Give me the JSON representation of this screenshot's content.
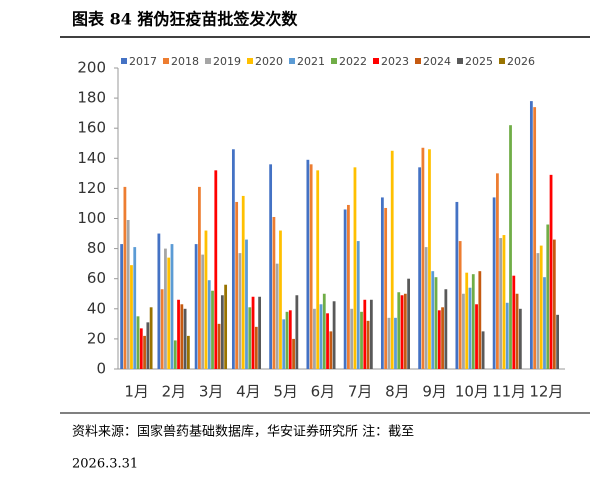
{
  "header": {
    "title": "图表 84 猪伪狂疫苗批签发次数"
  },
  "chart_data": {
    "type": "bar",
    "categories": [
      "1月",
      "2月",
      "3月",
      "4月",
      "5月",
      "6月",
      "7月",
      "8月",
      "9月",
      "10月",
      "11月",
      "12月"
    ],
    "series": [
      {
        "name": "2017",
        "color": "#4472c4",
        "values": [
          83,
          90,
          83,
          146,
          136,
          139,
          106,
          114,
          134,
          111,
          114,
          178
        ]
      },
      {
        "name": "2018",
        "color": "#ed7d31",
        "values": [
          121,
          53,
          121,
          111,
          101,
          136,
          109,
          107,
          147,
          85,
          130,
          174
        ]
      },
      {
        "name": "2019",
        "color": "#a5a5a5",
        "values": [
          99,
          80,
          76,
          77,
          70,
          40,
          40,
          34,
          81,
          50,
          87,
          77
        ]
      },
      {
        "name": "2020",
        "color": "#ffc000",
        "values": [
          69,
          74,
          92,
          115,
          92,
          132,
          134,
          145,
          146,
          64,
          89,
          82
        ]
      },
      {
        "name": "2021",
        "color": "#5b9bd5",
        "values": [
          81,
          83,
          59,
          86,
          33,
          43,
          85,
          34,
          65,
          54,
          44,
          61
        ]
      },
      {
        "name": "2022",
        "color": "#70ad47",
        "values": [
          35,
          19,
          52,
          41,
          38,
          50,
          38,
          51,
          61,
          63,
          162,
          96
        ]
      },
      {
        "name": "2023",
        "color": "#ff0000",
        "values": [
          27,
          46,
          132,
          48,
          39,
          37,
          46,
          49,
          39,
          43,
          62,
          129
        ]
      },
      {
        "name": "2024",
        "color": "#c55a11",
        "values": [
          22,
          43,
          30,
          28,
          20,
          25,
          32,
          50,
          41,
          65,
          50,
          86
        ]
      },
      {
        "name": "2025",
        "color": "#595959",
        "values": [
          31,
          40,
          49,
          48,
          49,
          45,
          46,
          60,
          53,
          25,
          40,
          36
        ]
      },
      {
        "name": "2026",
        "color": "#997300",
        "values": [
          41,
          22,
          56,
          null,
          null,
          null,
          null,
          null,
          null,
          null,
          null,
          null
        ]
      }
    ],
    "ylim": [
      0,
      200
    ],
    "yticks": [
      0,
      20,
      40,
      60,
      80,
      100,
      120,
      140,
      160,
      180,
      200
    ]
  },
  "footer": {
    "source": "资料来源：国家兽药基础数据库，华安证券研究所 注：截至",
    "date": "2026.3.31"
  }
}
